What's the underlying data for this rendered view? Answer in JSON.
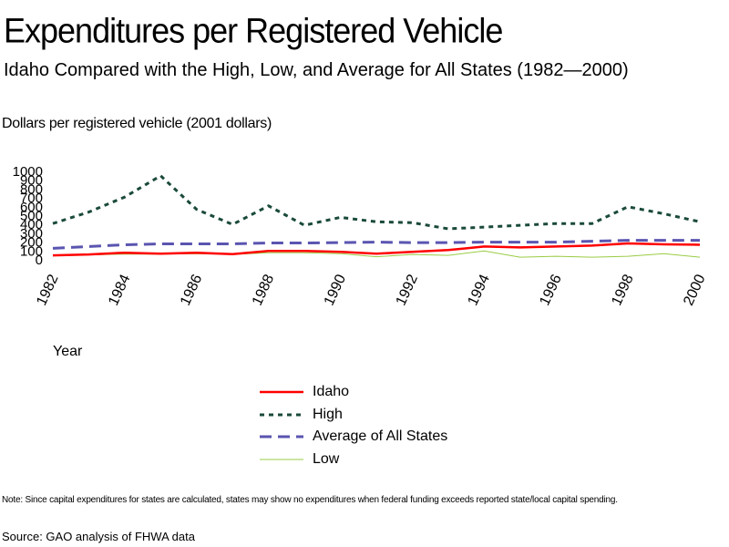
{
  "title": "Expenditures per Registered Vehicle",
  "subtitle": "Idaho Compared with the High, Low, and Average for All States (1982—2000)",
  "note": "Note: Since capital expenditures for states are calculated, states may show no expenditures when federal funding exceeds reported state/local capital spending.",
  "source": "Source: GAO analysis of FHWA data",
  "chart_data": {
    "type": "line",
    "ylabel": "Dollars per registered vehicle (2001 dollars)",
    "xlabel": "Year",
    "x": [
      1982,
      1983,
      1984,
      1985,
      1986,
      1987,
      1988,
      1989,
      1990,
      1991,
      1992,
      1993,
      1994,
      1995,
      1996,
      1997,
      1998,
      1999,
      2000
    ],
    "xticks": [
      1982,
      1984,
      1986,
      1988,
      1990,
      1992,
      1994,
      1996,
      1998,
      2000
    ],
    "yticks": [
      0,
      100,
      200,
      300,
      400,
      500,
      600,
      700,
      800,
      900,
      1000
    ],
    "ylim": [
      0,
      1000
    ],
    "xlim": [
      1982,
      2000
    ],
    "legend_position": "bottom-center",
    "series": [
      {
        "name": "Idaho",
        "color": "#ff0000",
        "style": "solid",
        "values": [
          40,
          50,
          70,
          60,
          70,
          55,
          90,
          90,
          80,
          60,
          80,
          100,
          140,
          130,
          140,
          150,
          175,
          165,
          160
        ]
      },
      {
        "name": "High",
        "color": "#1a4a3a",
        "style": "dotted",
        "values": [
          400,
          530,
          700,
          940,
          560,
          390,
          600,
          380,
          470,
          420,
          410,
          340,
          360,
          380,
          400,
          400,
          590,
          510,
          420
        ]
      },
      {
        "name": "Average of All States",
        "color": "#5a55b0",
        "style": "dashed",
        "values": [
          120,
          140,
          160,
          170,
          170,
          170,
          180,
          180,
          185,
          190,
          185,
          185,
          190,
          190,
          190,
          200,
          210,
          210,
          210
        ]
      },
      {
        "name": "Low",
        "color": "#99cc44",
        "style": "solid",
        "values": [
          40,
          45,
          55,
          55,
          60,
          50,
          70,
          70,
          60,
          25,
          50,
          40,
          90,
          20,
          30,
          20,
          30,
          60,
          20
        ]
      }
    ]
  }
}
